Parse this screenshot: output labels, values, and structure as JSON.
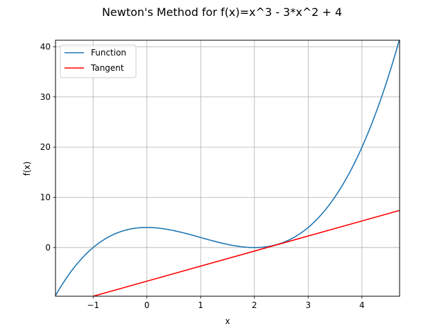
{
  "chart_data": {
    "type": "line",
    "title": "Newton's Method for f(x)=x^3 - 3*x^2 + 4",
    "xlabel": "x",
    "ylabel": "f(x)",
    "xlim": [
      -1.7,
      4.7
    ],
    "ylim": [
      -9.7,
      41.3
    ],
    "xticks": [
      -1,
      0,
      1,
      2,
      3,
      4
    ],
    "xtick_labels": [
      "−1",
      "0",
      "1",
      "2",
      "3",
      "4"
    ],
    "yticks": [
      0,
      10,
      20,
      30,
      40
    ],
    "ytick_labels": [
      "0",
      "10",
      "20",
      "30",
      "40"
    ],
    "grid": true,
    "legend_position": "top-left",
    "series": [
      {
        "name": "Function",
        "color": "#1f77b4",
        "x": [
          -1.7,
          -1.5,
          -1.25,
          -1.0,
          -0.75,
          -0.5,
          -0.25,
          0.0,
          0.25,
          0.5,
          0.75,
          1.0,
          1.25,
          1.5,
          1.75,
          2.0,
          2.25,
          2.5,
          2.75,
          3.0,
          3.25,
          3.5,
          3.75,
          4.0,
          4.25,
          4.5,
          4.7
        ],
        "y": [
          -9.58,
          -5.125,
          -0.641,
          0.0,
          1.891,
          3.125,
          3.797,
          4.0,
          3.828,
          3.375,
          2.734,
          2.0,
          1.266,
          0.625,
          0.172,
          0.0,
          0.203,
          0.875,
          2.109,
          4.0,
          6.641,
          10.125,
          14.547,
          20.0,
          26.578,
          34.375,
          41.53
        ]
      },
      {
        "name": "Tangent",
        "color": "#ff0000",
        "x": [
          -1.0,
          4.7
        ],
        "y": [
          -9.7,
          7.4
        ]
      }
    ]
  }
}
